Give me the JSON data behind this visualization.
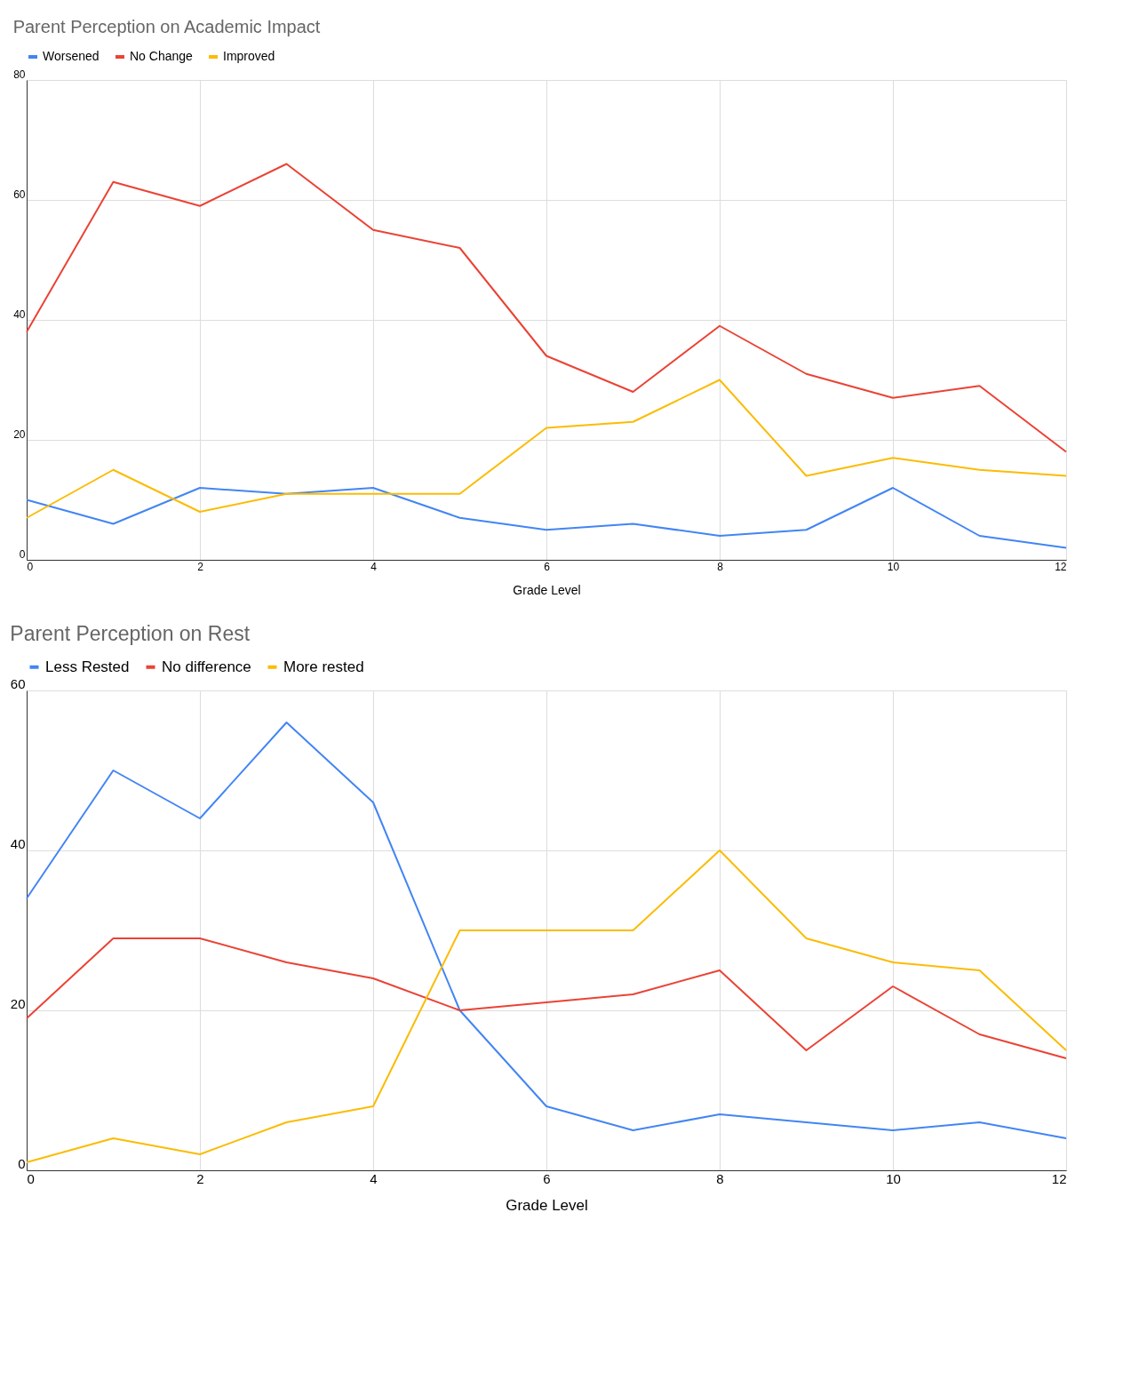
{
  "chart_data": [
    {
      "type": "line",
      "title": "Parent Perception on Academic Impact",
      "xlabel": "Grade Level",
      "x": [
        0,
        1,
        2,
        3,
        4,
        5,
        6,
        7,
        8,
        9,
        10,
        11,
        12
      ],
      "xlim": [
        0,
        12
      ],
      "xticks": [
        0,
        2,
        4,
        6,
        8,
        10,
        12
      ],
      "ylim": [
        0,
        80
      ],
      "yticks": [
        0,
        20,
        40,
        60,
        80
      ],
      "grid": true,
      "legend": "top",
      "series": [
        {
          "name": "Worsened",
          "color": "#4285f4",
          "values": [
            10,
            6,
            12,
            11,
            12,
            7,
            5,
            6,
            4,
            5,
            12,
            4,
            2
          ]
        },
        {
          "name": "No Change",
          "color": "#ea4335",
          "values": [
            38,
            63,
            59,
            66,
            55,
            52,
            34,
            28,
            39,
            31,
            27,
            29,
            18
          ]
        },
        {
          "name": "Improved",
          "color": "#fbbc04",
          "values": [
            7,
            15,
            8,
            11,
            11,
            11,
            22,
            23,
            30,
            14,
            17,
            15,
            14
          ]
        }
      ]
    },
    {
      "type": "line",
      "title": "Parent Perception on Rest",
      "xlabel": "Grade Level",
      "x": [
        0,
        1,
        2,
        3,
        4,
        5,
        6,
        7,
        8,
        9,
        10,
        11,
        12
      ],
      "xlim": [
        0,
        12
      ],
      "xticks": [
        0,
        2,
        4,
        6,
        8,
        10,
        12
      ],
      "ylim": [
        0,
        60
      ],
      "yticks": [
        0,
        20,
        40,
        60
      ],
      "grid": true,
      "legend": "top",
      "series": [
        {
          "name": "Less Rested",
          "color": "#4285f4",
          "values": [
            34,
            50,
            44,
            56,
            46,
            20,
            8,
            5,
            7,
            6,
            5,
            6,
            4
          ]
        },
        {
          "name": "No difference",
          "color": "#ea4335",
          "values": [
            19,
            29,
            29,
            26,
            24,
            20,
            21,
            22,
            25,
            15,
            23,
            17,
            14
          ]
        },
        {
          "name": "More rested",
          "color": "#fbbc04",
          "values": [
            1,
            4,
            2,
            6,
            8,
            30,
            30,
            30,
            40,
            29,
            26,
            25,
            15
          ]
        }
      ]
    }
  ]
}
